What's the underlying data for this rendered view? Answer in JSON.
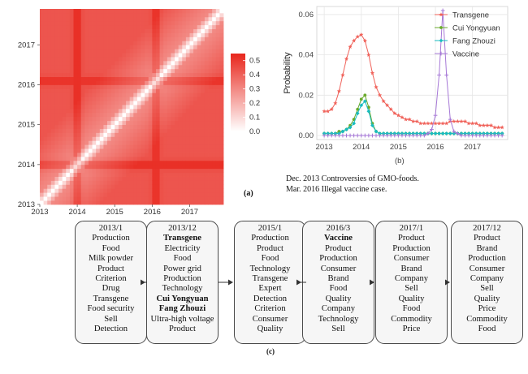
{
  "chart_data": [
    {
      "type": "heatmap",
      "caption": "(a)",
      "x_tick_labels": [
        "2013",
        "2014",
        "2015",
        "2016",
        "2017"
      ],
      "y_tick_labels": [
        "2013",
        "2014",
        "2015",
        "2016",
        "2017"
      ],
      "x_range": [
        2013.0,
        2017.9
      ],
      "y_range": [
        2013.0,
        2017.9
      ],
      "value_range": [
        0.0,
        0.55
      ],
      "colorbar_ticks": [
        "0.5",
        "0.4",
        "0.3",
        "0.2",
        "0.1",
        "0.0"
      ],
      "colorbar_tick_values": [
        0.5,
        0.4,
        0.3,
        0.2,
        0.1,
        0.0
      ],
      "colors": {
        "high": "#e8261c",
        "low": "#ffffff"
      },
      "pattern": "light diagonal; strong off-diagonal similarity, strongest bands near 2013.9-2014.1 and 2016.0-2016.2"
    },
    {
      "type": "line",
      "caption": "(b)",
      "ylabel": "Probability",
      "x_ticks": [
        "2013",
        "2014",
        "2015",
        "2016",
        "2017"
      ],
      "x_tick_values": [
        2013,
        2014,
        2015,
        2016,
        2017
      ],
      "y_ticks": [
        "0.00",
        "0.02",
        "0.04",
        "0.06"
      ],
      "y_tick_values": [
        0.0,
        0.02,
        0.04,
        0.06
      ],
      "xlim": [
        2012.8,
        2017.95
      ],
      "ylim": [
        -0.002,
        0.064
      ],
      "grid": true,
      "legend_position": "top-right",
      "x": [
        2013.0,
        2013.1,
        2013.2,
        2013.3,
        2013.4,
        2013.5,
        2013.6,
        2013.7,
        2013.8,
        2013.9,
        2014.0,
        2014.1,
        2014.2,
        2014.3,
        2014.4,
        2014.5,
        2014.6,
        2014.7,
        2014.8,
        2014.9,
        2015.0,
        2015.1,
        2015.2,
        2015.3,
        2015.4,
        2015.5,
        2015.6,
        2015.7,
        2015.8,
        2015.9,
        2016.0,
        2016.1,
        2016.2,
        2016.3,
        2016.4,
        2016.5,
        2016.6,
        2016.7,
        2016.8,
        2016.9,
        2017.0,
        2017.1,
        2017.2,
        2017.3,
        2017.4,
        2017.5,
        2017.6,
        2017.7,
        2017.8
      ],
      "series": [
        {
          "name": "Transgene",
          "color": "#f0625a",
          "marker": "star",
          "values": [
            0.012,
            0.012,
            0.013,
            0.016,
            0.022,
            0.03,
            0.038,
            0.044,
            0.047,
            0.049,
            0.05,
            0.047,
            0.04,
            0.031,
            0.024,
            0.02,
            0.017,
            0.015,
            0.013,
            0.011,
            0.01,
            0.009,
            0.008,
            0.008,
            0.007,
            0.007,
            0.006,
            0.006,
            0.006,
            0.006,
            0.006,
            0.006,
            0.006,
            0.006,
            0.007,
            0.007,
            0.007,
            0.007,
            0.007,
            0.006,
            0.006,
            0.006,
            0.005,
            0.005,
            0.005,
            0.005,
            0.004,
            0.004,
            0.004
          ]
        },
        {
          "name": "Cui Yongyuan",
          "color": "#6aaa2c",
          "marker": "dot",
          "values": [
            0.001,
            0.001,
            0.001,
            0.001,
            0.002,
            0.002,
            0.003,
            0.005,
            0.008,
            0.013,
            0.018,
            0.02,
            0.014,
            0.006,
            0.002,
            0.001,
            0.001,
            0.001,
            0.001,
            0.001,
            0.001,
            0.001,
            0.001,
            0.001,
            0.001,
            0.001,
            0.001,
            0.001,
            0.001,
            0.001,
            0.001,
            0.001,
            0.001,
            0.001,
            0.001,
            0.001,
            0.001,
            0.001,
            0.001,
            0.001,
            0.001,
            0.001,
            0.001,
            0.001,
            0.001,
            0.001,
            0.001,
            0.001,
            0.001
          ]
        },
        {
          "name": "Fang Zhouzi",
          "color": "#19bcc0",
          "marker": "diamond",
          "values": [
            0.001,
            0.001,
            0.001,
            0.001,
            0.001,
            0.002,
            0.003,
            0.004,
            0.006,
            0.011,
            0.015,
            0.017,
            0.012,
            0.005,
            0.002,
            0.001,
            0.001,
            0.001,
            0.001,
            0.001,
            0.001,
            0.001,
            0.001,
            0.001,
            0.001,
            0.001,
            0.001,
            0.001,
            0.001,
            0.001,
            0.001,
            0.001,
            0.001,
            0.001,
            0.001,
            0.001,
            0.001,
            0.001,
            0.001,
            0.001,
            0.001,
            0.001,
            0.001,
            0.001,
            0.001,
            0.001,
            0.001,
            0.001,
            0.001
          ]
        },
        {
          "name": "Vaccine",
          "color": "#a678d6",
          "marker": "plus",
          "values": [
            0.0,
            0.0,
            0.0,
            0.0,
            0.0,
            0.0,
            0.0,
            0.0,
            0.0,
            0.0,
            0.0,
            0.0,
            0.0,
            0.0,
            0.0,
            0.0,
            0.0,
            0.0,
            0.0,
            0.0,
            0.0,
            0.0,
            0.0,
            0.0,
            0.0,
            0.0,
            0.0,
            0.0,
            0.001,
            0.003,
            0.01,
            0.03,
            0.062,
            0.03,
            0.008,
            0.002,
            0.001,
            0.0,
            0.0,
            0.0,
            0.0,
            0.0,
            0.0,
            0.0,
            0.0,
            0.0,
            0.0,
            0.0,
            0.0
          ]
        }
      ]
    },
    {
      "type": "table",
      "caption": "(c)",
      "columns": [
        {
          "date": "2013/1",
          "terms": [
            "Production",
            "Food",
            "Milk powder",
            "Product",
            "Criterion",
            "Drug",
            "Transgene",
            "Food security",
            "Sell",
            "Detection"
          ],
          "bold_terms": []
        },
        {
          "date": "2013/12",
          "terms": [
            "Transgene",
            "Electricity",
            "Food",
            "Power grid",
            "Production",
            "Technology",
            "Cui Yongyuan",
            "Fang Zhouzi",
            "Ultra-high voltage",
            "Product"
          ],
          "bold_terms": [
            "Transgene",
            "Cui Yongyuan",
            "Fang Zhouzi"
          ]
        },
        {
          "date": "2015/1",
          "terms": [
            "Production",
            "Product",
            "Food",
            "Technology",
            "Transgene",
            "Expert",
            "Detection",
            "Criterion",
            "Consumer",
            "Quality"
          ],
          "bold_terms": []
        },
        {
          "date": "2016/3",
          "terms": [
            "Vaccine",
            "Product",
            "Production",
            "Consumer",
            "Brand",
            "Food",
            "Quality",
            "Company",
            "Technology",
            "Sell"
          ],
          "bold_terms": [
            "Vaccine"
          ]
        },
        {
          "date": "2017/1",
          "terms": [
            "Product",
            "Production",
            "Consumer",
            "Brand",
            "Company",
            "Sell",
            "Quality",
            "Food",
            "Commodity",
            "Price"
          ],
          "bold_terms": []
        },
        {
          "date": "2017/12",
          "terms": [
            "Product",
            "Brand",
            "Production",
            "Consumer",
            "Company",
            "Sell",
            "Quality",
            "Price",
            "Commodity",
            "Food"
          ],
          "bold_terms": []
        }
      ]
    }
  ],
  "notes": [
    "Dec. 2013 Controversies of GMO-foods.",
    "Mar. 2016 Illegal vaccine case."
  ],
  "captions": {
    "a": "(a)",
    "b": "(b)",
    "c": "(c)"
  }
}
